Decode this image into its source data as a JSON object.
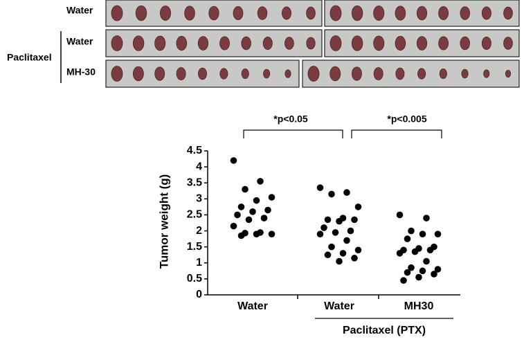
{
  "photos": {
    "row_labels": [
      "Water",
      "Water",
      "MH-30"
    ],
    "group_label": "Paclitaxel"
  },
  "chart_data": {
    "type": "strip",
    "ylabel": "Tumor weight (g)",
    "categories": [
      "Water",
      "Water",
      "MH30"
    ],
    "group_label": "Paclitaxel (PTX)",
    "annotations": [
      "*p<0.05",
      "*p<0.005"
    ],
    "ylim": [
      0,
      4.5
    ],
    "yticks": [
      0,
      0.5,
      1,
      1.5,
      2,
      2.5,
      3,
      3.5,
      4,
      4.5
    ],
    "color": "#000000",
    "series": [
      {
        "values": [
          4.2,
          3.55,
          3.3,
          3.05,
          2.95,
          2.75,
          2.65,
          2.6,
          2.5,
          2.4,
          2.35,
          2.15,
          1.95,
          1.93,
          1.9,
          1.9,
          1.85
        ]
      },
      {
        "values": [
          3.35,
          3.2,
          3.15,
          2.75,
          2.4,
          2.35,
          2.35,
          2.3,
          2.1,
          2.0,
          1.95,
          1.9,
          1.7,
          1.5,
          1.4,
          1.3,
          1.25,
          1.15,
          1.05
        ]
      },
      {
        "values": [
          2.5,
          2.4,
          2.0,
          1.9,
          1.9,
          1.75,
          1.5,
          1.45,
          1.4,
          1.4,
          1.35,
          1.3,
          1.05,
          0.85,
          0.8,
          0.75,
          0.7,
          0.65,
          0.55,
          0.45
        ]
      }
    ]
  }
}
